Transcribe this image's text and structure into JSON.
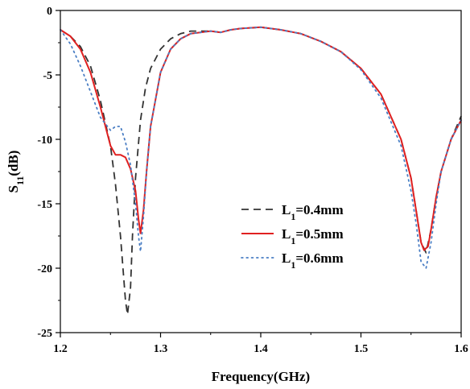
{
  "chart_data": {
    "type": "line",
    "title": "",
    "xlabel": "Frequency(GHz)",
    "ylabel": {
      "main": "S",
      "sub": "11",
      "suffix": "(dB)"
    },
    "xlim": [
      1.2,
      1.6
    ],
    "ylim": [
      -25,
      0
    ],
    "xticks": [
      1.2,
      1.3,
      1.4,
      1.5,
      1.6
    ],
    "xtick_labels": [
      "1.2",
      "1.3",
      "1.4",
      "1.5",
      "1.6"
    ],
    "yticks": [
      0,
      -5,
      -10,
      -15,
      -20,
      -25
    ],
    "ytick_labels": [
      "0",
      "-5",
      "-10",
      "-15",
      "-20",
      "-25"
    ],
    "grid": false,
    "legend": {
      "position": "center-right",
      "entries": [
        {
          "main": "L",
          "sub": "1",
          "suffix": "=0.4mm"
        },
        {
          "main": "L",
          "sub": "1",
          "suffix": "=0.5mm"
        },
        {
          "main": "L",
          "sub": "1",
          "suffix": "=0.6mm"
        }
      ]
    },
    "series": [
      {
        "name": "L1=0.4mm",
        "color": "#333333",
        "style": "dashed",
        "x": [
          1.2,
          1.21,
          1.22,
          1.23,
          1.24,
          1.25,
          1.255,
          1.26,
          1.265,
          1.267,
          1.27,
          1.272,
          1.275,
          1.28,
          1.285,
          1.29,
          1.3,
          1.31,
          1.32,
          1.33,
          1.35,
          1.36,
          1.37,
          1.38,
          1.4,
          1.42,
          1.44,
          1.46,
          1.48,
          1.5,
          1.52,
          1.54,
          1.55,
          1.555,
          1.56,
          1.565,
          1.57,
          1.575,
          1.58,
          1.59,
          1.6
        ],
        "y": [
          -1.5,
          -2.0,
          -2.8,
          -4.3,
          -7.0,
          -10.5,
          -13.5,
          -17.5,
          -22.5,
          -23.6,
          -21.5,
          -17.5,
          -13.0,
          -8.5,
          -6.0,
          -4.5,
          -3.0,
          -2.2,
          -1.8,
          -1.6,
          -1.6,
          -1.7,
          -1.5,
          -1.4,
          -1.3,
          -1.5,
          -1.8,
          -2.4,
          -3.2,
          -4.5,
          -6.5,
          -10.0,
          -13.0,
          -15.5,
          -18.0,
          -18.8,
          -17.0,
          -14.5,
          -12.5,
          -10.0,
          -8.2
        ]
      },
      {
        "name": "L1=0.5mm",
        "color": "#e02020",
        "style": "solid",
        "x": [
          1.2,
          1.21,
          1.22,
          1.23,
          1.24,
          1.25,
          1.255,
          1.26,
          1.265,
          1.27,
          1.275,
          1.278,
          1.28,
          1.283,
          1.286,
          1.29,
          1.3,
          1.31,
          1.32,
          1.33,
          1.35,
          1.36,
          1.37,
          1.38,
          1.4,
          1.42,
          1.44,
          1.46,
          1.48,
          1.5,
          1.52,
          1.54,
          1.55,
          1.555,
          1.56,
          1.563,
          1.567,
          1.57,
          1.575,
          1.58,
          1.59,
          1.6
        ],
        "y": [
          -1.5,
          -2.0,
          -3.0,
          -4.8,
          -7.5,
          -10.5,
          -11.2,
          -11.2,
          -11.4,
          -12.3,
          -14.0,
          -16.2,
          -17.3,
          -15.5,
          -12.5,
          -9.0,
          -4.8,
          -3.0,
          -2.2,
          -1.8,
          -1.6,
          -1.7,
          -1.5,
          -1.4,
          -1.3,
          -1.5,
          -1.8,
          -2.4,
          -3.2,
          -4.5,
          -6.5,
          -10.0,
          -13.0,
          -15.5,
          -18.0,
          -18.6,
          -18.3,
          -17.0,
          -14.5,
          -12.5,
          -10.0,
          -8.5
        ]
      },
      {
        "name": "L1=0.6mm",
        "color": "#4a7ec4",
        "style": "dotted",
        "x": [
          1.2,
          1.21,
          1.22,
          1.23,
          1.24,
          1.25,
          1.255,
          1.26,
          1.265,
          1.27,
          1.275,
          1.278,
          1.28,
          1.283,
          1.286,
          1.29,
          1.3,
          1.31,
          1.32,
          1.33,
          1.35,
          1.36,
          1.37,
          1.38,
          1.4,
          1.42,
          1.44,
          1.46,
          1.48,
          1.5,
          1.52,
          1.54,
          1.55,
          1.555,
          1.56,
          1.565,
          1.57,
          1.575,
          1.58,
          1.59,
          1.6
        ],
        "y": [
          -1.5,
          -2.6,
          -4.3,
          -6.3,
          -8.3,
          -9.3,
          -9.0,
          -9.0,
          -10.2,
          -12.0,
          -15.0,
          -17.5,
          -18.7,
          -16.0,
          -12.5,
          -9.0,
          -4.8,
          -3.0,
          -2.2,
          -1.8,
          -1.6,
          -1.7,
          -1.5,
          -1.4,
          -1.3,
          -1.5,
          -1.8,
          -2.4,
          -3.2,
          -4.6,
          -6.8,
          -10.5,
          -14.0,
          -16.5,
          -19.5,
          -20.0,
          -18.0,
          -15.0,
          -12.5,
          -10.0,
          -8.5
        ]
      }
    ]
  }
}
